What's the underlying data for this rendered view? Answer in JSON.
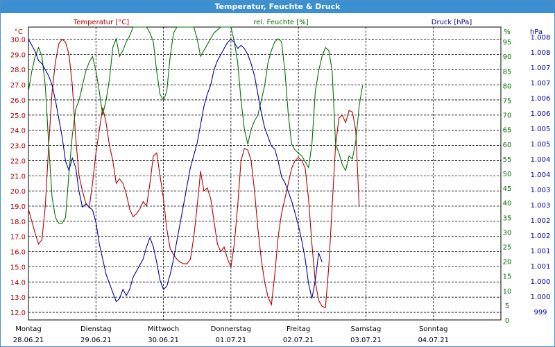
{
  "window": {
    "title": "Temperatur, Feuchte & Druck"
  },
  "colors": {
    "temperature": "#b00000",
    "humidity": "#007000",
    "pressure": "#0000a0",
    "grid": "#000000",
    "title_bar": "#3c8fd0"
  },
  "chart_data": {
    "type": "line",
    "title": "Temperatur, Feuchte & Druck",
    "grid": true,
    "axes": {
      "temperature": {
        "unit": "°C",
        "ylim": [
          11.5,
          30.8
        ],
        "ticks": [
          "30.0",
          "29.0",
          "28.0",
          "27.0",
          "26.0",
          "25.0",
          "24.0",
          "23.0",
          "22.0",
          "21.0",
          "20.0",
          "19.0",
          "18.0",
          "17.0",
          "16.0",
          "15.0",
          "14.0",
          "13.0",
          "12.0"
        ]
      },
      "humidity": {
        "unit": "%",
        "ylim": [
          0,
          100
        ],
        "ticks": [
          "95",
          "90",
          "85",
          "80",
          "75",
          "70",
          "65",
          "60",
          "55",
          "50",
          "45",
          "40",
          "35",
          "30",
          "25",
          "20",
          "15",
          "10",
          "5",
          "0"
        ]
      },
      "pressure": {
        "unit": "hPa",
        "ylim": [
          998.8,
          1008.4
        ],
        "ticks": [
          "1.008",
          "1.008",
          "1.007",
          "1.007",
          "1.006",
          "1.006",
          "1.005",
          "1.005",
          "1.004",
          "1.004",
          "1.003",
          "1.003",
          "1.002",
          "1.002",
          "1.001",
          "1.001",
          "1.000",
          "1.000",
          "999"
        ]
      }
    },
    "x_labels": [
      {
        "day": "Montag",
        "date": "28.06.21"
      },
      {
        "day": "Dienstag",
        "date": "29.06.21"
      },
      {
        "day": "Mittwoch",
        "date": "30.06.21"
      },
      {
        "day": "Donnerstag",
        "date": "01.07.21"
      },
      {
        "day": "Freitag",
        "date": "02.07.21"
      },
      {
        "day": "Samstag",
        "date": "03.07.21"
      },
      {
        "day": "Sonntag",
        "date": "04.07.21"
      }
    ],
    "x_range_days": [
      0,
      7
    ],
    "series": [
      {
        "name": "Temperatur [°C]",
        "axis": "temperature",
        "color": "#b00000",
        "points": [
          [
            0.0,
            18.8
          ],
          [
            0.1,
            17.2
          ],
          [
            0.15,
            16.5
          ],
          [
            0.2,
            16.8
          ],
          [
            0.25,
            19.0
          ],
          [
            0.3,
            23.0
          ],
          [
            0.35,
            26.5
          ],
          [
            0.4,
            28.5
          ],
          [
            0.45,
            29.7
          ],
          [
            0.5,
            30.0
          ],
          [
            0.55,
            29.8
          ],
          [
            0.6,
            29.0
          ],
          [
            0.65,
            27.0
          ],
          [
            0.7,
            23.5
          ],
          [
            0.75,
            21.0
          ],
          [
            0.8,
            20.0
          ],
          [
            0.85,
            19.2
          ],
          [
            0.9,
            18.9
          ],
          [
            0.95,
            20.5
          ],
          [
            1.0,
            22.5
          ],
          [
            1.05,
            24.0
          ],
          [
            1.1,
            25.5
          ],
          [
            1.15,
            24.5
          ],
          [
            1.2,
            23.0
          ],
          [
            1.25,
            22.0
          ],
          [
            1.3,
            20.5
          ],
          [
            1.35,
            20.8
          ],
          [
            1.4,
            20.5
          ],
          [
            1.45,
            19.8
          ],
          [
            1.5,
            18.8
          ],
          [
            1.55,
            18.3
          ],
          [
            1.6,
            18.5
          ],
          [
            1.65,
            18.8
          ],
          [
            1.7,
            19.3
          ],
          [
            1.75,
            19.0
          ],
          [
            1.8,
            20.5
          ],
          [
            1.85,
            22.3
          ],
          [
            1.9,
            22.5
          ],
          [
            1.95,
            21.0
          ],
          [
            2.0,
            19.5
          ],
          [
            2.05,
            17.5
          ],
          [
            2.1,
            16.2
          ],
          [
            2.15,
            15.8
          ],
          [
            2.2,
            15.5
          ],
          [
            2.25,
            15.3
          ],
          [
            2.3,
            15.2
          ],
          [
            2.35,
            15.2
          ],
          [
            2.4,
            15.5
          ],
          [
            2.45,
            17.0
          ],
          [
            2.5,
            19.0
          ],
          [
            2.55,
            21.3
          ],
          [
            2.6,
            20.0
          ],
          [
            2.65,
            20.2
          ],
          [
            2.7,
            19.5
          ],
          [
            2.75,
            18.0
          ],
          [
            2.8,
            16.5
          ],
          [
            2.85,
            16.0
          ],
          [
            2.9,
            16.3
          ],
          [
            2.95,
            15.5
          ],
          [
            3.0,
            15.0
          ],
          [
            3.05,
            16.5
          ],
          [
            3.1,
            19.0
          ],
          [
            3.15,
            22.0
          ],
          [
            3.2,
            22.8
          ],
          [
            3.25,
            22.7
          ],
          [
            3.3,
            22.0
          ],
          [
            3.35,
            20.0
          ],
          [
            3.4,
            17.5
          ],
          [
            3.45,
            15.5
          ],
          [
            3.5,
            14.0
          ],
          [
            3.55,
            13.0
          ],
          [
            3.6,
            12.5
          ],
          [
            3.65,
            14.5
          ],
          [
            3.7,
            17.0
          ],
          [
            3.75,
            18.5
          ],
          [
            3.8,
            19.5
          ],
          [
            3.85,
            20.5
          ],
          [
            3.9,
            21.5
          ],
          [
            3.95,
            22.0
          ],
          [
            4.0,
            22.2
          ],
          [
            4.05,
            22.0
          ],
          [
            4.1,
            21.5
          ],
          [
            4.15,
            19.5
          ],
          [
            4.2,
            16.5
          ],
          [
            4.25,
            14.0
          ],
          [
            4.3,
            12.8
          ],
          [
            4.35,
            12.4
          ],
          [
            4.4,
            12.3
          ],
          [
            4.45,
            15.0
          ],
          [
            4.5,
            19.0
          ],
          [
            4.55,
            23.0
          ],
          [
            4.6,
            24.8
          ],
          [
            4.65,
            25.0
          ],
          [
            4.7,
            24.5
          ],
          [
            4.75,
            25.3
          ],
          [
            4.8,
            25.2
          ],
          [
            4.85,
            24.0
          ],
          [
            4.9,
            19.0
          ]
        ]
      },
      {
        "name": "rel. Feuchte [%]",
        "axis": "humidity",
        "color": "#007000",
        "points": [
          [
            0.0,
            78
          ],
          [
            0.05,
            85
          ],
          [
            0.1,
            90
          ],
          [
            0.15,
            93
          ],
          [
            0.2,
            90
          ],
          [
            0.25,
            80
          ],
          [
            0.3,
            60
          ],
          [
            0.35,
            42
          ],
          [
            0.4,
            35
          ],
          [
            0.45,
            33
          ],
          [
            0.5,
            33
          ],
          [
            0.55,
            35
          ],
          [
            0.6,
            50
          ],
          [
            0.65,
            63
          ],
          [
            0.7,
            72
          ],
          [
            0.75,
            75
          ],
          [
            0.8,
            80
          ],
          [
            0.85,
            85
          ],
          [
            0.9,
            88
          ],
          [
            0.95,
            90
          ],
          [
            1.0,
            85
          ],
          [
            1.05,
            78
          ],
          [
            1.1,
            70
          ],
          [
            1.15,
            75
          ],
          [
            1.2,
            82
          ],
          [
            1.25,
            93
          ],
          [
            1.3,
            96
          ],
          [
            1.35,
            90
          ],
          [
            1.4,
            92
          ],
          [
            1.45,
            95
          ],
          [
            1.5,
            97
          ],
          [
            1.55,
            100
          ],
          [
            1.6,
            100
          ],
          [
            1.65,
            100
          ],
          [
            1.7,
            100
          ],
          [
            1.75,
            100
          ],
          [
            1.8,
            98
          ],
          [
            1.85,
            95
          ],
          [
            1.9,
            85
          ],
          [
            1.95,
            77
          ],
          [
            2.0,
            75
          ],
          [
            2.05,
            78
          ],
          [
            2.1,
            90
          ],
          [
            2.15,
            98
          ],
          [
            2.2,
            100
          ],
          [
            2.25,
            100
          ],
          [
            2.3,
            100
          ],
          [
            2.35,
            100
          ],
          [
            2.4,
            100
          ],
          [
            2.45,
            100
          ],
          [
            2.5,
            96
          ],
          [
            2.55,
            90
          ],
          [
            2.6,
            92
          ],
          [
            2.65,
            94
          ],
          [
            2.7,
            96
          ],
          [
            2.75,
            98
          ],
          [
            2.8,
            99
          ],
          [
            2.85,
            100
          ],
          [
            2.9,
            100
          ],
          [
            2.95,
            100
          ],
          [
            3.0,
            100
          ],
          [
            3.05,
            95
          ],
          [
            3.1,
            88
          ],
          [
            3.15,
            75
          ],
          [
            3.2,
            65
          ],
          [
            3.25,
            60
          ],
          [
            3.3,
            65
          ],
          [
            3.35,
            68
          ],
          [
            3.4,
            70
          ],
          [
            3.45,
            75
          ],
          [
            3.5,
            80
          ],
          [
            3.55,
            88
          ],
          [
            3.6,
            92
          ],
          [
            3.65,
            95
          ],
          [
            3.7,
            96
          ],
          [
            3.75,
            95
          ],
          [
            3.8,
            85
          ],
          [
            3.85,
            70
          ],
          [
            3.9,
            60
          ],
          [
            3.95,
            58
          ],
          [
            4.0,
            57
          ],
          [
            4.05,
            56
          ],
          [
            4.1,
            54
          ],
          [
            4.15,
            52
          ],
          [
            4.2,
            60
          ],
          [
            4.25,
            78
          ],
          [
            4.3,
            85
          ],
          [
            4.35,
            90
          ],
          [
            4.4,
            93
          ],
          [
            4.45,
            92
          ],
          [
            4.5,
            85
          ],
          [
            4.55,
            60
          ],
          [
            4.6,
            57
          ],
          [
            4.65,
            53
          ],
          [
            4.7,
            51
          ],
          [
            4.75,
            56
          ],
          [
            4.8,
            55
          ],
          [
            4.85,
            61
          ],
          [
            4.9,
            73
          ],
          [
            4.95,
            80
          ]
        ]
      },
      {
        "name": "Druck [hPa]",
        "axis": "pressure",
        "color": "#0000a0",
        "points": [
          [
            0.0,
            1008.0
          ],
          [
            0.05,
            1007.8
          ],
          [
            0.1,
            1007.6
          ],
          [
            0.15,
            1007.3
          ],
          [
            0.2,
            1007.2
          ],
          [
            0.25,
            1007.0
          ],
          [
            0.3,
            1006.8
          ],
          [
            0.35,
            1006.5
          ],
          [
            0.4,
            1006.0
          ],
          [
            0.45,
            1005.4
          ],
          [
            0.5,
            1004.8
          ],
          [
            0.55,
            1004.0
          ],
          [
            0.6,
            1003.7
          ],
          [
            0.65,
            1004.1
          ],
          [
            0.7,
            1003.8
          ],
          [
            0.75,
            1003.0
          ],
          [
            0.8,
            1002.5
          ],
          [
            0.85,
            1002.6
          ],
          [
            0.9,
            1002.5
          ],
          [
            0.95,
            1002.4
          ],
          [
            1.0,
            1002.0
          ],
          [
            1.05,
            1001.3
          ],
          [
            1.1,
            1000.8
          ],
          [
            1.15,
            1000.3
          ],
          [
            1.2,
            1000.0
          ],
          [
            1.25,
            999.7
          ],
          [
            1.3,
            999.4
          ],
          [
            1.35,
            999.5
          ],
          [
            1.4,
            999.8
          ],
          [
            1.45,
            999.6
          ],
          [
            1.5,
            999.8
          ],
          [
            1.55,
            1000.2
          ],
          [
            1.6,
            1000.4
          ],
          [
            1.65,
            1000.6
          ],
          [
            1.7,
            1000.8
          ],
          [
            1.75,
            1001.2
          ],
          [
            1.8,
            1001.5
          ],
          [
            1.85,
            1001.2
          ],
          [
            1.9,
            1000.7
          ],
          [
            1.95,
            1000.1
          ],
          [
            2.0,
            999.8
          ],
          [
            2.05,
            999.9
          ],
          [
            2.1,
            1000.3
          ],
          [
            2.15,
            1000.8
          ],
          [
            2.2,
            1001.4
          ],
          [
            2.25,
            1002.0
          ],
          [
            2.3,
            1002.6
          ],
          [
            2.35,
            1003.2
          ],
          [
            2.4,
            1003.8
          ],
          [
            2.45,
            1004.2
          ],
          [
            2.5,
            1004.6
          ],
          [
            2.55,
            1005.2
          ],
          [
            2.6,
            1005.8
          ],
          [
            2.65,
            1006.2
          ],
          [
            2.7,
            1006.5
          ],
          [
            2.75,
            1007.0
          ],
          [
            2.8,
            1007.3
          ],
          [
            2.85,
            1007.5
          ],
          [
            2.9,
            1007.7
          ],
          [
            2.95,
            1007.9
          ],
          [
            3.0,
            1008.0
          ],
          [
            3.05,
            1007.9
          ],
          [
            3.1,
            1007.7
          ],
          [
            3.15,
            1007.8
          ],
          [
            3.2,
            1007.7
          ],
          [
            3.25,
            1007.5
          ],
          [
            3.3,
            1007.2
          ],
          [
            3.35,
            1006.8
          ],
          [
            3.4,
            1006.2
          ],
          [
            3.45,
            1005.6
          ],
          [
            3.5,
            1005.1
          ],
          [
            3.55,
            1004.8
          ],
          [
            3.6,
            1004.5
          ],
          [
            3.65,
            1004.4
          ],
          [
            3.7,
            1004.0
          ],
          [
            3.75,
            1003.5
          ],
          [
            3.8,
            1003.3
          ],
          [
            3.85,
            1003.0
          ],
          [
            3.9,
            1002.7
          ],
          [
            3.95,
            1002.3
          ],
          [
            4.0,
            1001.9
          ],
          [
            4.05,
            1001.4
          ],
          [
            4.1,
            1000.8
          ],
          [
            4.15,
            1000.0
          ],
          [
            4.2,
            999.5
          ],
          [
            4.25,
            1000.1
          ],
          [
            4.3,
            1001.0
          ],
          [
            4.35,
            1000.7
          ]
        ]
      }
    ]
  }
}
